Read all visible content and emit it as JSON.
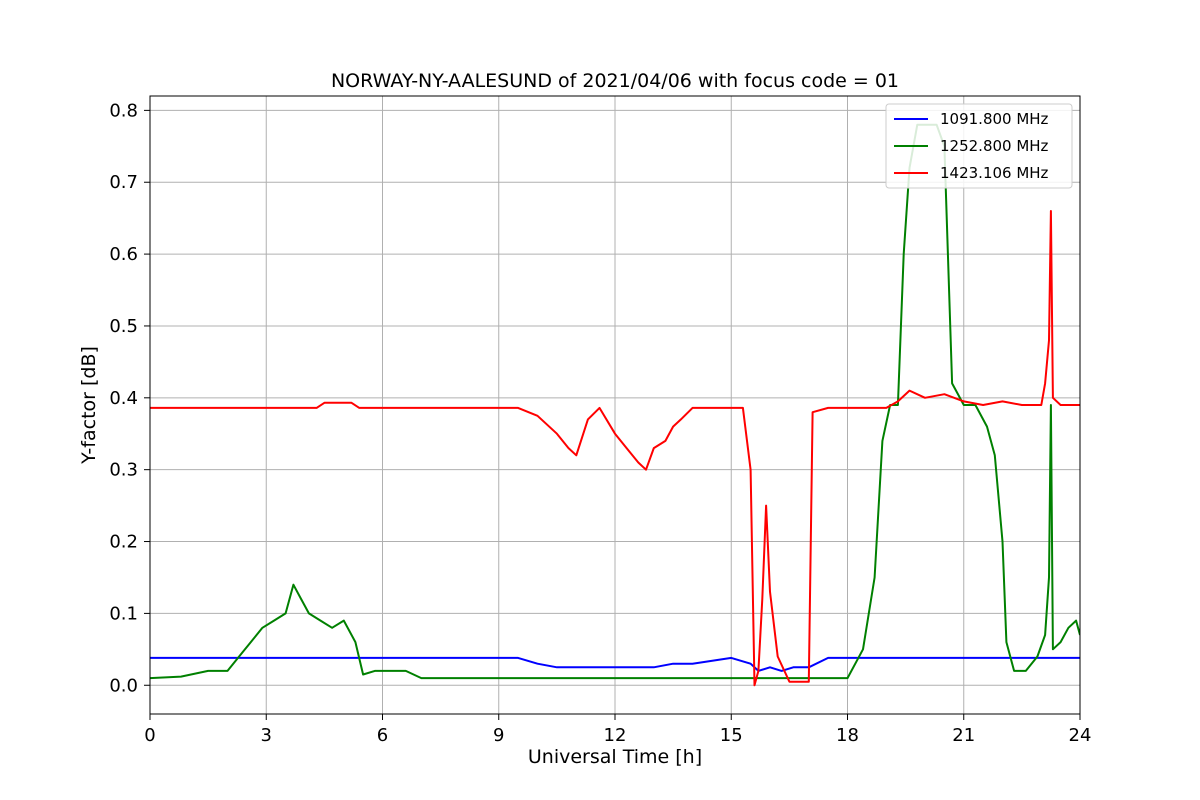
{
  "chart_data": {
    "type": "line",
    "title": "NORWAY-NY-AALESUND of 2021/04/06 with focus code = 01",
    "xlabel": "Universal Time [h]",
    "ylabel": "Y-factor [dB]",
    "xlim": [
      0,
      24
    ],
    "ylim": [
      -0.04,
      0.82
    ],
    "xticks": [
      0,
      3,
      6,
      9,
      12,
      15,
      18,
      21,
      24
    ],
    "yticks": [
      0.0,
      0.1,
      0.2,
      0.3,
      0.4,
      0.5,
      0.6,
      0.7,
      0.8
    ],
    "xtick_labels": [
      "0",
      "3",
      "6",
      "9",
      "12",
      "15",
      "18",
      "21",
      "24"
    ],
    "ytick_labels": [
      "0.0",
      "0.1",
      "0.2",
      "0.3",
      "0.4",
      "0.5",
      "0.6",
      "0.7",
      "0.8"
    ],
    "grid": true,
    "legend_position": "top-right",
    "series": [
      {
        "name": "1091.800 MHz",
        "color": "#0000ff",
        "x": [
          0,
          4.0,
          4.5,
          7.8,
          8.0,
          9.0,
          9.5,
          10.0,
          10.5,
          11.0,
          11.5,
          12.0,
          12.5,
          13.0,
          13.5,
          14.0,
          15.0,
          15.5,
          15.7,
          16.0,
          16.3,
          16.6,
          17.0,
          17.5,
          18.0,
          19.0,
          21.0,
          22.0,
          24.0
        ],
        "y": [
          0.038,
          0.038,
          0.038,
          0.038,
          0.038,
          0.038,
          0.038,
          0.03,
          0.025,
          0.025,
          0.025,
          0.025,
          0.025,
          0.025,
          0.03,
          0.03,
          0.038,
          0.03,
          0.02,
          0.025,
          0.02,
          0.025,
          0.025,
          0.038,
          0.038,
          0.038,
          0.038,
          0.038,
          0.038
        ]
      },
      {
        "name": "1252.800 MHz",
        "color": "#008000",
        "x": [
          0,
          0.8,
          1.5,
          2.0,
          2.3,
          2.6,
          2.9,
          3.2,
          3.5,
          3.7,
          3.9,
          4.1,
          4.4,
          4.7,
          5.0,
          5.3,
          5.5,
          5.8,
          6.2,
          6.6,
          7.0,
          7.5,
          8.0,
          9.0,
          10.0,
          12.0,
          14.0,
          15.0,
          15.6,
          16.0,
          17.0,
          17.5,
          18.0,
          18.4,
          18.7,
          18.9,
          19.1,
          19.3,
          19.45,
          19.6,
          19.8,
          20.0,
          20.3,
          20.5,
          20.7,
          21.0,
          21.3,
          21.6,
          21.8,
          22.0,
          22.1,
          22.3,
          22.6,
          22.9,
          23.1,
          23.2,
          23.25,
          23.3,
          23.5,
          23.7,
          23.9,
          24.0
        ],
        "y": [
          0.01,
          0.012,
          0.02,
          0.02,
          0.04,
          0.06,
          0.08,
          0.09,
          0.1,
          0.14,
          0.12,
          0.1,
          0.09,
          0.08,
          0.09,
          0.06,
          0.015,
          0.02,
          0.02,
          0.02,
          0.01,
          0.01,
          0.01,
          0.01,
          0.01,
          0.01,
          0.01,
          0.01,
          0.01,
          0.01,
          0.01,
          0.01,
          0.01,
          0.05,
          0.15,
          0.34,
          0.39,
          0.39,
          0.6,
          0.72,
          0.78,
          0.78,
          0.78,
          0.75,
          0.42,
          0.39,
          0.39,
          0.36,
          0.32,
          0.2,
          0.06,
          0.02,
          0.02,
          0.04,
          0.07,
          0.15,
          0.39,
          0.05,
          0.06,
          0.08,
          0.09,
          0.07
        ]
      },
      {
        "name": "1423.106 MHz",
        "color": "#ff0000",
        "x": [
          0,
          4.3,
          4.5,
          4.8,
          5.2,
          5.4,
          9.5,
          10.0,
          10.5,
          10.8,
          11.0,
          11.3,
          11.6,
          12.0,
          12.3,
          12.6,
          12.8,
          13.0,
          13.3,
          13.5,
          13.7,
          14.0,
          15.0,
          15.3,
          15.5,
          15.6,
          15.7,
          15.8,
          15.9,
          16.0,
          16.2,
          16.5,
          17.0,
          17.1,
          17.5,
          18.0,
          19.0,
          19.3,
          19.6,
          20.0,
          20.5,
          21.0,
          21.5,
          22.0,
          22.5,
          23.0,
          23.1,
          23.2,
          23.25,
          23.3,
          23.5,
          24.0
        ],
        "y": [
          0.386,
          0.386,
          0.393,
          0.393,
          0.393,
          0.386,
          0.386,
          0.375,
          0.35,
          0.33,
          0.32,
          0.37,
          0.386,
          0.35,
          0.33,
          0.31,
          0.3,
          0.33,
          0.34,
          0.36,
          0.37,
          0.386,
          0.386,
          0.386,
          0.3,
          0.0,
          0.02,
          0.12,
          0.25,
          0.13,
          0.04,
          0.005,
          0.005,
          0.38,
          0.386,
          0.386,
          0.386,
          0.395,
          0.41,
          0.4,
          0.405,
          0.395,
          0.39,
          0.395,
          0.39,
          0.39,
          0.42,
          0.48,
          0.66,
          0.4,
          0.39,
          0.39
        ]
      }
    ]
  }
}
